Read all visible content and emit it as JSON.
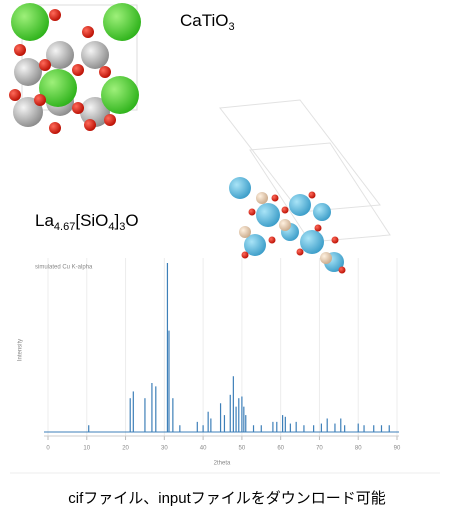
{
  "structures": [
    {
      "formula_parts": [
        "CaTiO",
        "3"
      ]
    },
    {
      "formula_parts": [
        "La",
        "4.67",
        "[SiO",
        "4",
        "]",
        "3",
        "O"
      ]
    }
  ],
  "chart_data": {
    "type": "stem",
    "subtitle": "simulated Cu K-alpha",
    "y_label": "Intensity",
    "x_label": "2theta",
    "color": "#3d7fb8",
    "grid": true,
    "xlim": [
      0,
      90
    ],
    "ylim": [
      0,
      100
    ],
    "xticks": [
      0,
      10,
      20,
      30,
      40,
      50,
      60,
      70,
      80,
      90
    ],
    "x": [
      10.5,
      21.2,
      22,
      25,
      26.8,
      27.8,
      30.8,
      31.2,
      32.2,
      34,
      38.5,
      40,
      41.3,
      42,
      44.5,
      45.5,
      47,
      47.8,
      48.5,
      49.2,
      50,
      50.5,
      51,
      53,
      55,
      58,
      59,
      60.5,
      61.2,
      62.5,
      64,
      66,
      68.5,
      70.5,
      72,
      74,
      75.5,
      76.5,
      80,
      81.5,
      84,
      86,
      88
    ],
    "values": [
      4,
      20,
      24,
      20,
      29,
      27,
      100,
      60,
      20,
      4,
      6,
      4,
      12,
      8,
      17,
      10,
      22,
      33,
      15,
      20,
      21,
      15,
      10,
      4,
      4,
      6,
      6,
      10,
      9,
      5,
      6,
      4,
      4,
      5,
      8,
      5,
      8,
      4,
      5,
      4,
      4,
      4,
      4
    ]
  },
  "caption": "cifファイル、inputファイルをダウンロード可能"
}
